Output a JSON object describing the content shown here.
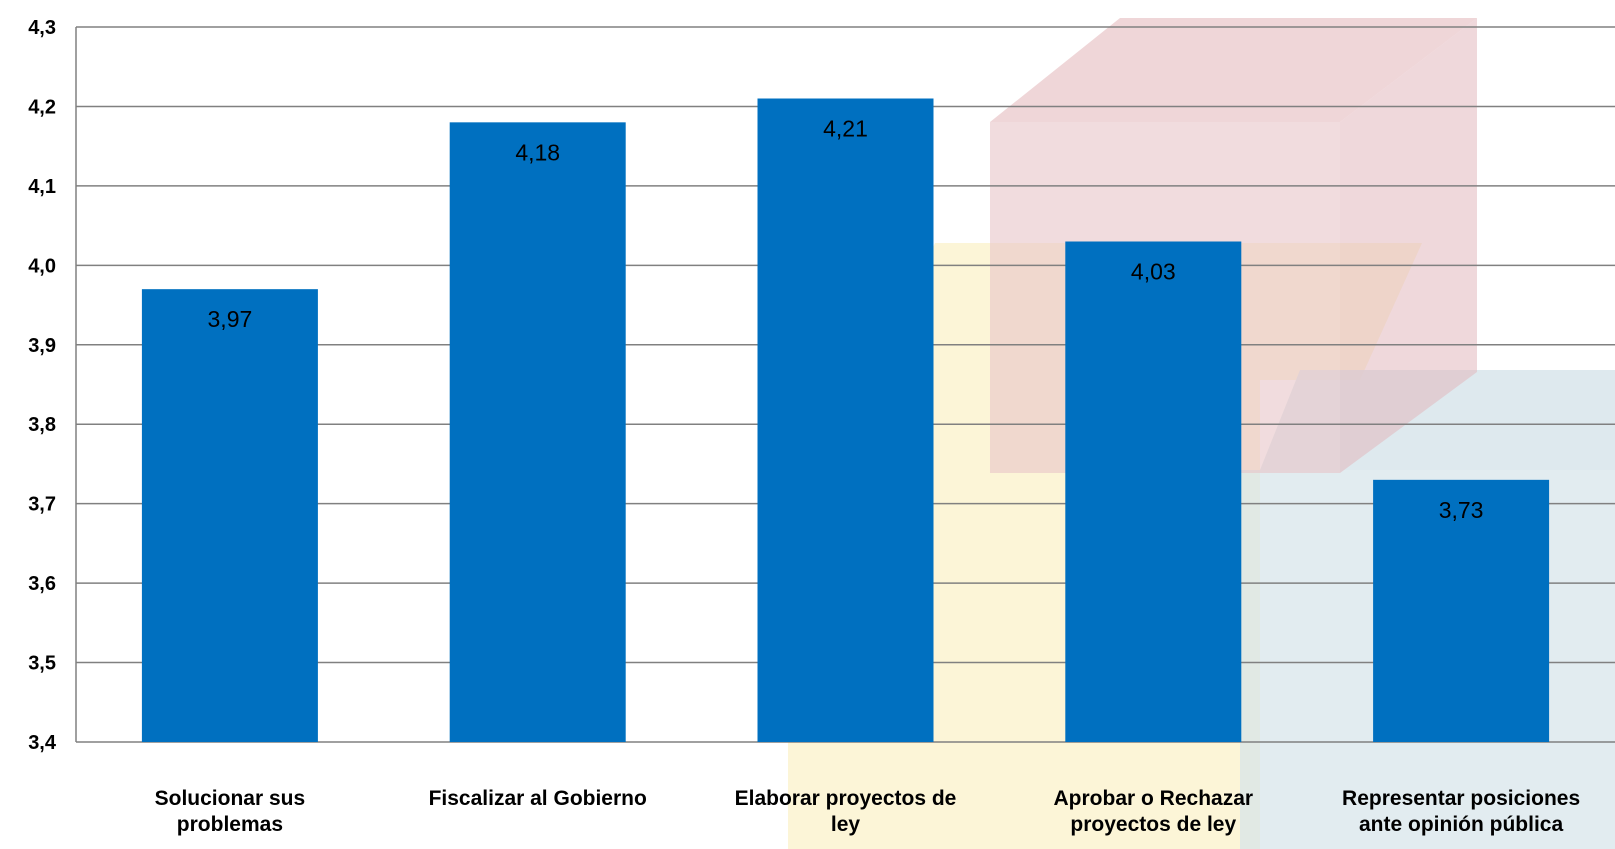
{
  "chart_data": {
    "type": "bar",
    "title": "",
    "xlabel": "",
    "ylabel": "",
    "categories": [
      [
        "Solucionar sus",
        "problemas"
      ],
      [
        "Fiscalizar al Gobierno"
      ],
      [
        "Elaborar proyectos de",
        "ley"
      ],
      [
        "Aprobar o Rechazar",
        "proyectos de ley"
      ],
      [
        "Representar posiciones",
        "ante opinión pública"
      ]
    ],
    "values": [
      3.97,
      4.18,
      4.21,
      4.03,
      3.73
    ],
    "value_labels": [
      "3,97",
      "4,18",
      "4,21",
      "4,03",
      "3,73"
    ],
    "ylim": [
      3.4,
      4.3
    ],
    "yticks": [
      3.4,
      3.5,
      3.6,
      3.7,
      3.8,
      3.9,
      4.0,
      4.1,
      4.2,
      4.3
    ],
    "ytick_labels": [
      "3,4",
      "3,5",
      "3,6",
      "3,7",
      "3,8",
      "3,9",
      "4,0",
      "4,1",
      "4,2",
      "4,3"
    ],
    "grid": true,
    "legend": "none",
    "colors": {
      "bar": "#0070C0",
      "grid": "#808080",
      "axis": "#808080",
      "deco_red": "#E8C4C8",
      "deco_yellow": "#FBF2C9",
      "deco_blue": "#D6E4EA"
    }
  }
}
